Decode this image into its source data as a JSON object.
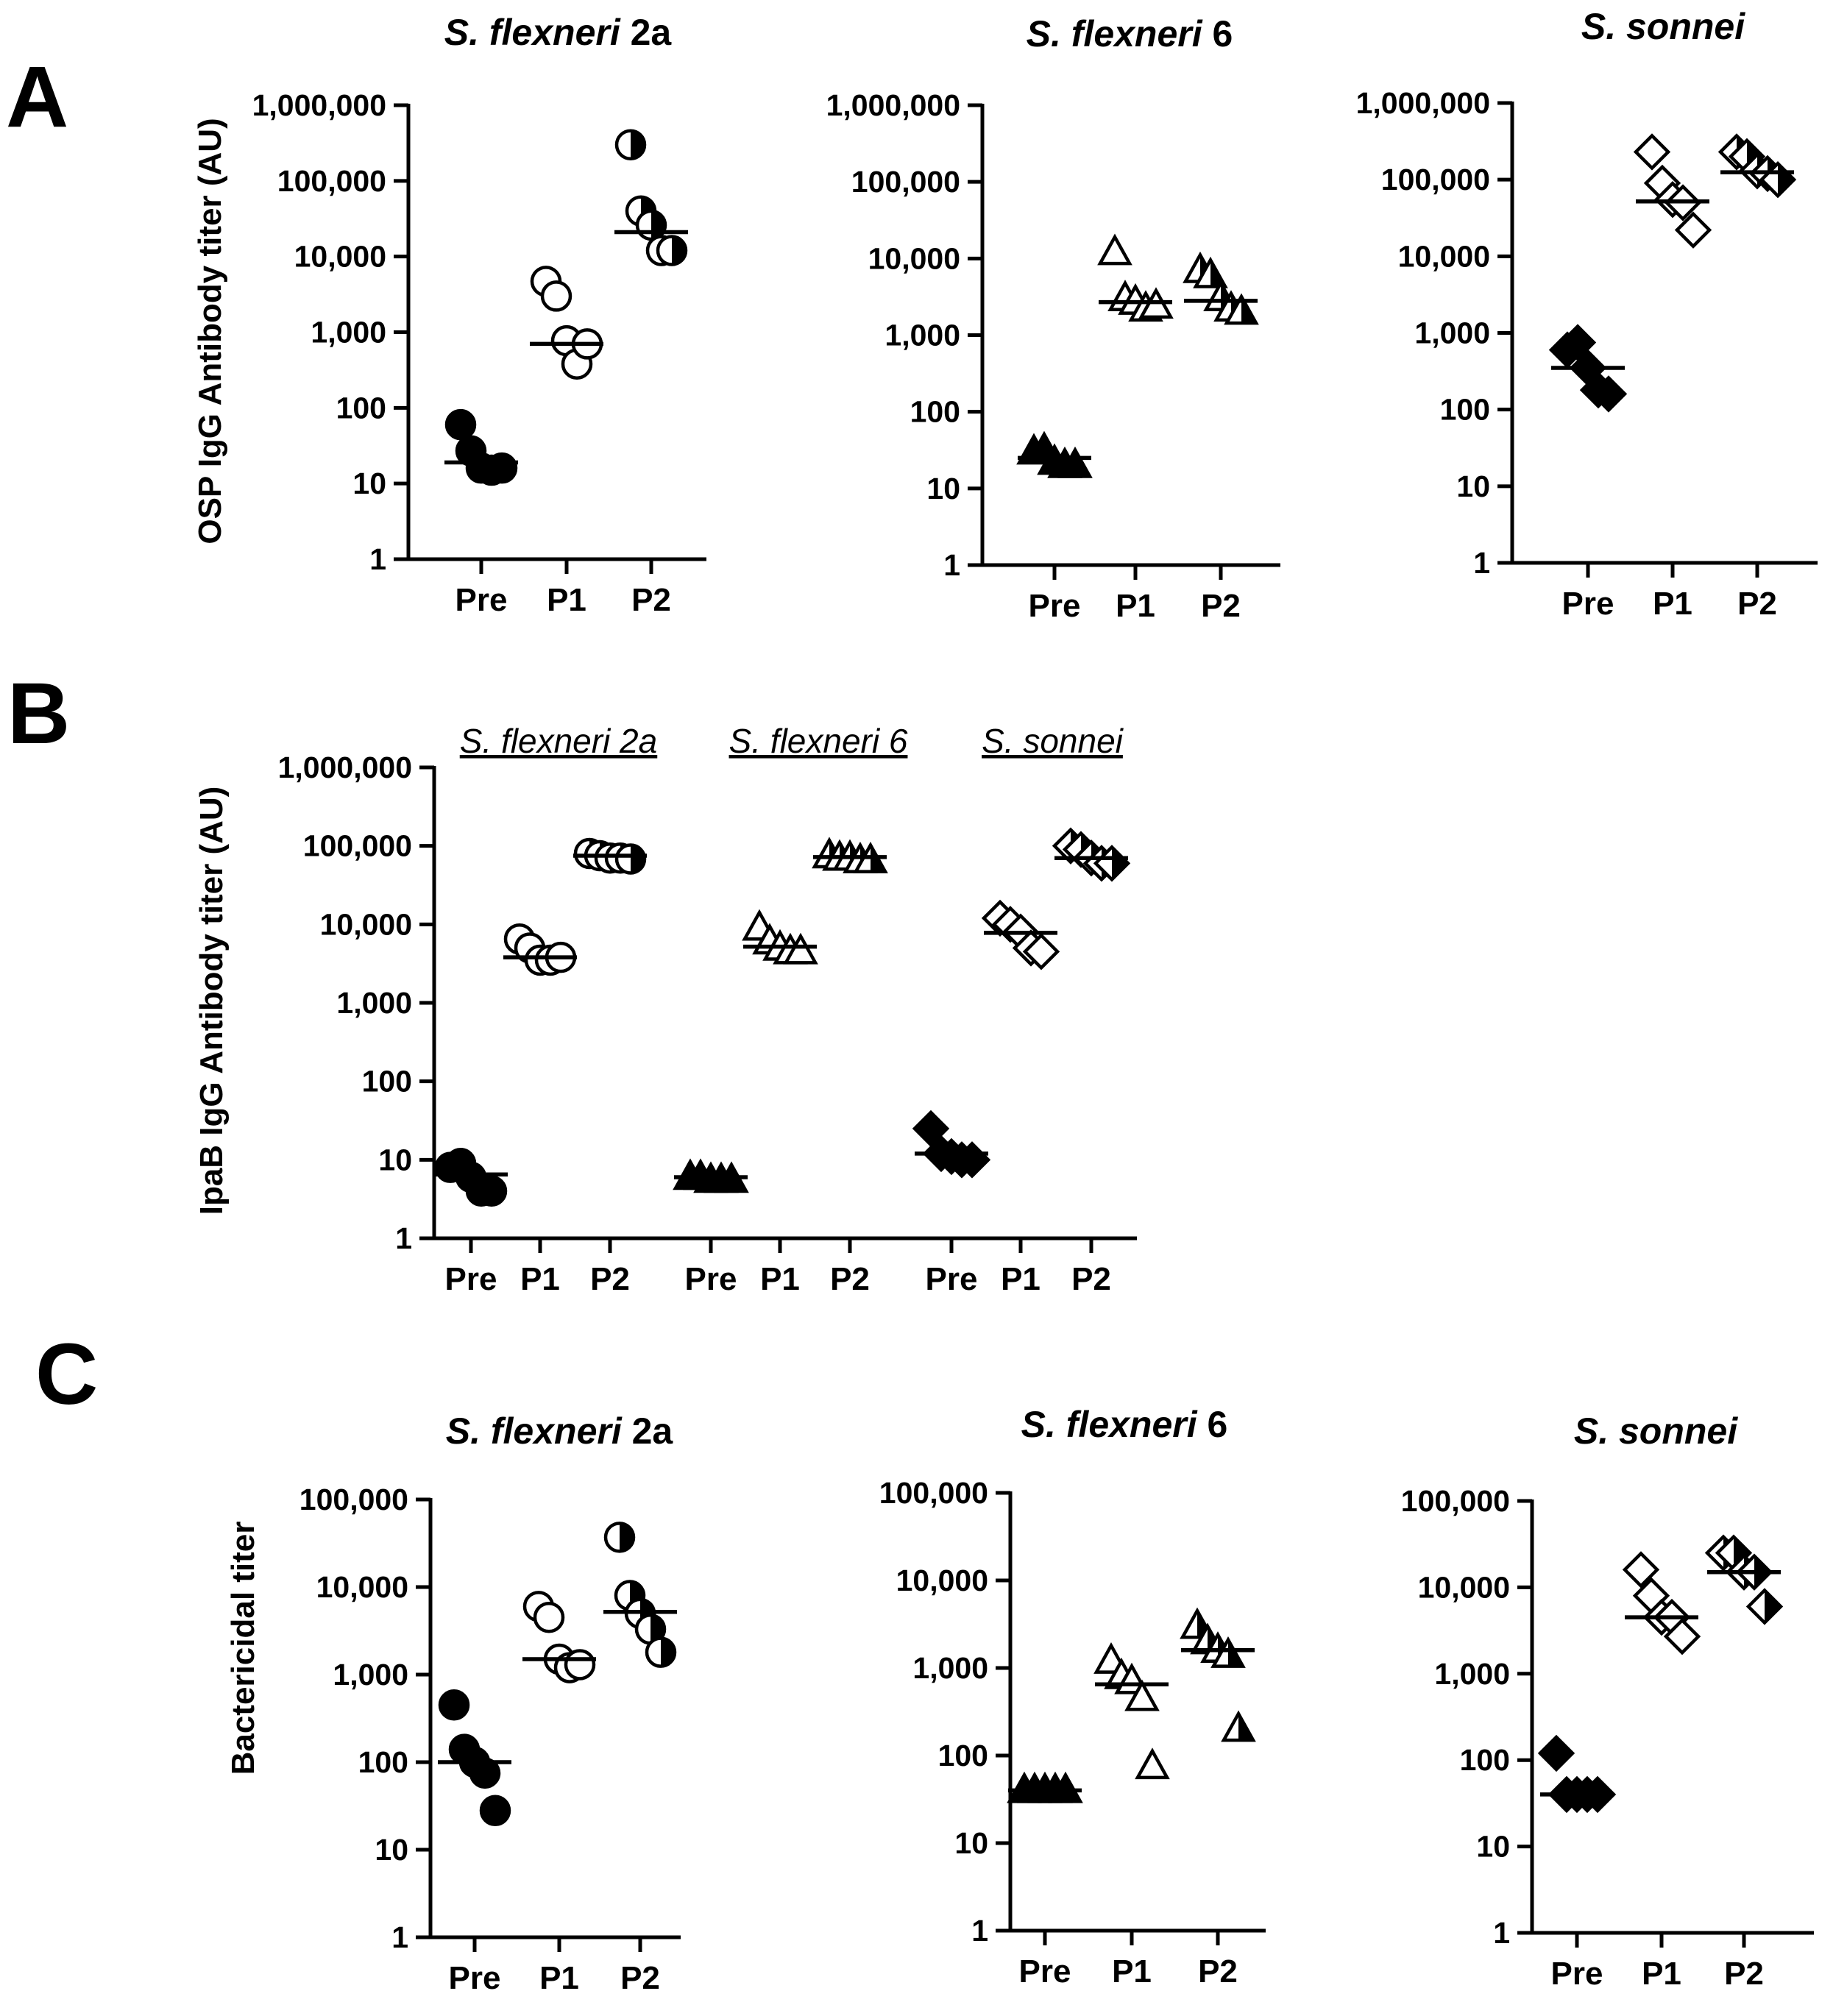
{
  "figure": {
    "panel_labels": [
      "A",
      "B",
      "C"
    ]
  },
  "chart_data": [
    {
      "panel": "A",
      "type": "scatter",
      "title_italic": "S. flexneri",
      "title_plain": " 2a",
      "ylabel": "OSP IgG Antibody titer (AU)",
      "yscale": "log",
      "ylim": [
        1,
        1000000
      ],
      "yticks": [
        "1",
        "10",
        "100",
        "1,000",
        "10,000",
        "100,000",
        "1,000,000"
      ],
      "categories": [
        "Pre",
        "P1",
        "P2"
      ],
      "marker": [
        "circle-filled",
        "circle-open",
        "circle-half"
      ],
      "points": [
        [
          60,
          27,
          16,
          15,
          16
        ],
        [
          4700,
          3000,
          770,
          380,
          700
        ],
        [
          300000,
          40000,
          26000,
          12000,
          12000
        ]
      ],
      "medians": [
        19,
        700,
        21000
      ]
    },
    {
      "panel": "A",
      "type": "scatter",
      "title_italic": "S. flexneri",
      "title_plain": " 6",
      "ylabel": "",
      "yscale": "log",
      "ylim": [
        1,
        1000000
      ],
      "yticks": [
        "1",
        "10",
        "100",
        "1,000",
        "10,000",
        "100,000",
        "1,000,000"
      ],
      "categories": [
        "Pre",
        "P1",
        "P2"
      ],
      "marker": [
        "triangle-filled",
        "triangle-open",
        "triangle-half"
      ],
      "points": [
        [
          30,
          32,
          22,
          20,
          20
        ],
        [
          12000,
          3000,
          2700,
          2200,
          2400
        ],
        [
          7000,
          6000,
          3000,
          2200,
          2000
        ]
      ],
      "medians": [
        25,
        2700,
        2800
      ]
    },
    {
      "panel": "A",
      "type": "scatter",
      "title_italic": "S. sonnei",
      "title_plain": "",
      "ylabel": "",
      "yscale": "log",
      "ylim": [
        1,
        1000000
      ],
      "yticks": [
        "1",
        "10",
        "100",
        "1,000",
        "10,000",
        "100,000",
        "1,000,000"
      ],
      "categories": [
        "Pre",
        "P1",
        "P2"
      ],
      "marker": [
        "diamond-filled",
        "diamond-open",
        "diamond-half"
      ],
      "points": [
        [
          600,
          750,
          350,
          180,
          160
        ],
        [
          230000,
          90000,
          55000,
          50000,
          22000
        ],
        [
          230000,
          200000,
          130000,
          120000,
          100000
        ]
      ],
      "medians": [
        350,
        52000,
        125000
      ]
    },
    {
      "panel": "B",
      "type": "scatter",
      "ylabel": "IpaB IgG Antibody titer (AU)",
      "yscale": "log",
      "ylim": [
        1,
        1000000
      ],
      "yticks": [
        "1",
        "10",
        "100",
        "1,000",
        "10,000",
        "100,000",
        "1,000,000"
      ],
      "groups": [
        "S. flexneri 2a",
        "S. flexneri 6",
        "S. sonnei"
      ],
      "categories": [
        "Pre",
        "P1",
        "P2",
        "Pre",
        "P1",
        "P2",
        "Pre",
        "P1",
        "P2"
      ],
      "marker": [
        "circle-filled",
        "circle-open",
        "circle-half",
        "triangle-filled",
        "triangle-open",
        "triangle-half",
        "diamond-filled",
        "diamond-open",
        "diamond-half"
      ],
      "points": [
        [
          8,
          9,
          6,
          4,
          4
        ],
        [
          6500,
          5000,
          3500,
          3500,
          3800
        ],
        [
          80000,
          75000,
          70000,
          70000,
          68000
        ],
        [
          6,
          6,
          5.5,
          5.5,
          5.5
        ],
        [
          9000,
          6000,
          5000,
          4500,
          4500
        ],
        [
          75000,
          70000,
          70000,
          65000,
          65000
        ],
        [
          25,
          12,
          11,
          10,
          10
        ],
        [
          12000,
          10000,
          8000,
          5000,
          4500
        ],
        [
          100000,
          90000,
          70000,
          60000,
          60000
        ]
      ],
      "medians": [
        6.5,
        3800,
        75000,
        6,
        5200,
        72000,
        12,
        7800,
        70000
      ]
    },
    {
      "panel": "C",
      "type": "scatter",
      "title_italic": "S. flexneri",
      "title_plain": " 2a",
      "ylabel": "Bactericidal titer",
      "yscale": "log",
      "ylim": [
        1,
        100000
      ],
      "yticks": [
        "1",
        "10",
        "100",
        "1,000",
        "10,000",
        "100,000"
      ],
      "categories": [
        "Pre",
        "P1",
        "P2"
      ],
      "marker": [
        "circle-filled",
        "circle-open",
        "circle-half"
      ],
      "points": [
        [
          450,
          140,
          100,
          75,
          28
        ],
        [
          6000,
          4500,
          1500,
          1200,
          1300
        ],
        [
          37000,
          8000,
          5000,
          3300,
          1800
        ]
      ],
      "medians": [
        100,
        1500,
        5200
      ]
    },
    {
      "panel": "C",
      "type": "scatter",
      "title_italic": "S. flexneri",
      "title_plain": " 6",
      "ylabel": "",
      "yscale": "log",
      "ylim": [
        1,
        100000
      ],
      "yticks": [
        "1",
        "10",
        "100",
        "1,000",
        "10,000",
        "100,000"
      ],
      "categories": [
        "Pre",
        "P1",
        "P2"
      ],
      "marker": [
        "triangle-filled",
        "triangle-open",
        "triangle-half"
      ],
      "points": [
        [
          40,
          40,
          40,
          40,
          40
        ],
        [
          1200,
          800,
          700,
          450,
          75
        ],
        [
          3000,
          2000,
          1600,
          1400,
          200
        ]
      ],
      "medians": [
        40,
        650,
        1600
      ]
    },
    {
      "panel": "C",
      "type": "scatter",
      "title_italic": "S. sonnei",
      "title_plain": "",
      "ylabel": "",
      "yscale": "log",
      "ylim": [
        1,
        100000
      ],
      "yticks": [
        "1",
        "10",
        "100",
        "1,000",
        "10,000",
        "100,000"
      ],
      "categories": [
        "Pre",
        "P1",
        "P2"
      ],
      "marker": [
        "diamond-filled",
        "diamond-open",
        "diamond-half"
      ],
      "points": [
        [
          120,
          40,
          40,
          40,
          40
        ],
        [
          16000,
          8000,
          4500,
          4500,
          2700
        ],
        [
          25000,
          25000,
          15000,
          15000,
          6000
        ]
      ],
      "medians": [
        40,
        4500,
        15000
      ]
    }
  ]
}
